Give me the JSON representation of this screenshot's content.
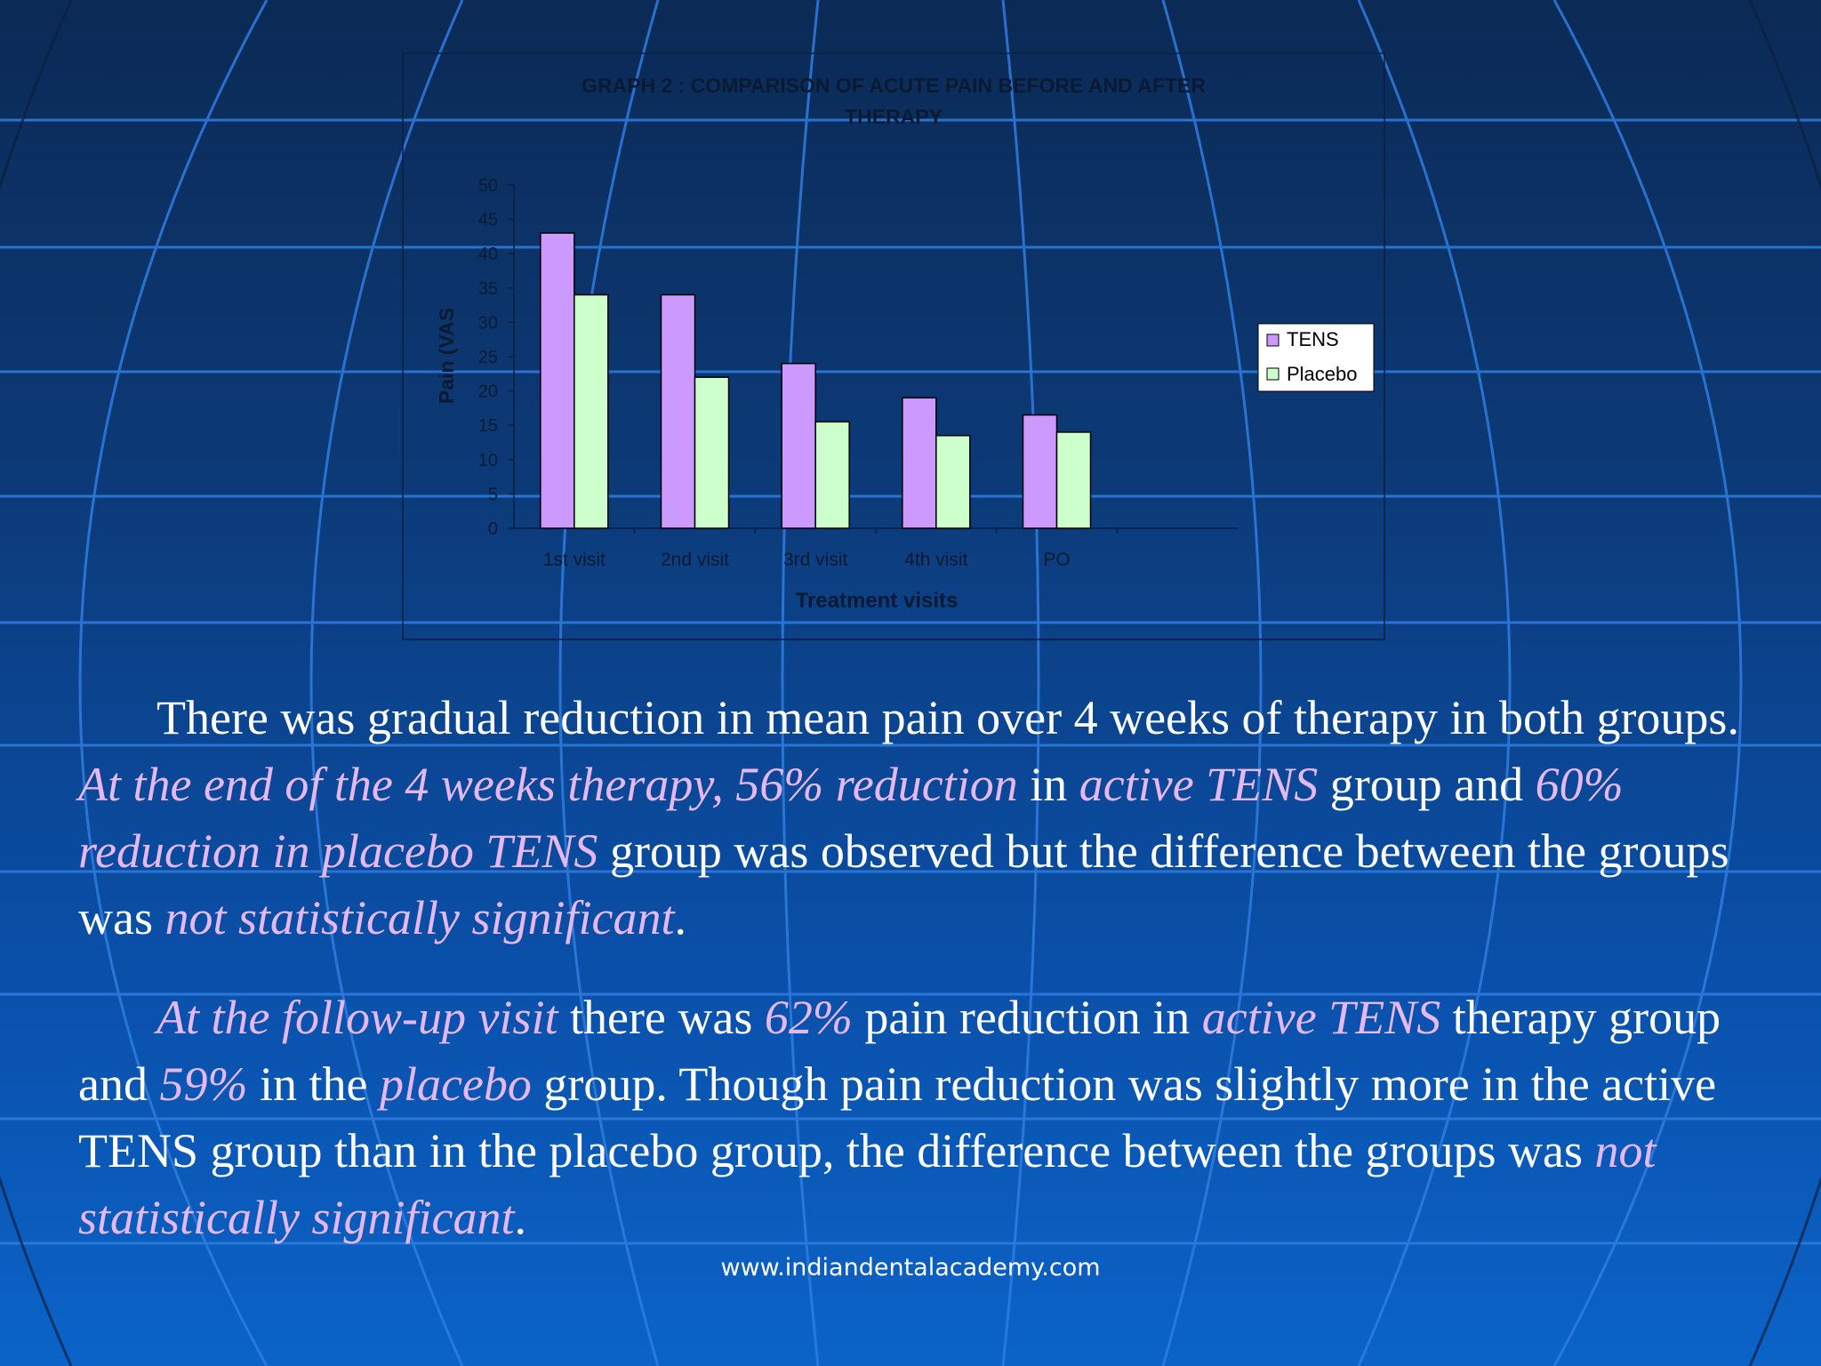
{
  "chart_data": {
    "type": "bar",
    "title_line1": "GRAPH 2 : COMPARISON OF ACUTE PAIN BEFORE AND AFTER",
    "title_line2": "THERAPY",
    "xlabel": "Treatment visits",
    "ylabel": "Pain (VAS",
    "ylim": [
      0,
      50
    ],
    "yticks": [
      0,
      5,
      10,
      15,
      20,
      25,
      30,
      35,
      40,
      45,
      50
    ],
    "categories": [
      "1st visit",
      "2nd visit",
      "3rd visit",
      "4th visit",
      "PO"
    ],
    "series": [
      {
        "name": "TENS",
        "color": "#cc99ff",
        "values": [
          43,
          34,
          24,
          19,
          16.5
        ]
      },
      {
        "name": "Placebo",
        "color": "#ccffcc",
        "values": [
          34,
          22,
          15.5,
          13.5,
          14
        ]
      }
    ],
    "legend_position": "right",
    "grid": false
  },
  "paragraphs": {
    "p1": [
      {
        "text": "There was gradual reduction in mean pain over 4 weeks of therapy in both groups. ",
        "em": false
      },
      {
        "text": "At the end of the 4 weeks therapy, 56% reduction",
        "em": true
      },
      {
        "text": " in ",
        "em": false
      },
      {
        "text": "active TENS",
        "em": true
      },
      {
        "text": " group and ",
        "em": false
      },
      {
        "text": "60% reduction in placebo TENS",
        "em": true
      },
      {
        "text": " group was observed but the difference between the groups was ",
        "em": false
      },
      {
        "text": "not statistically significant",
        "em": true
      },
      {
        "text": ".",
        "em": false
      }
    ],
    "p2": [
      {
        "text": "At the follow-up visit",
        "em": true
      },
      {
        "text": " there was ",
        "em": false
      },
      {
        "text": "62%",
        "em": true
      },
      {
        "text": " pain reduction in ",
        "em": false
      },
      {
        "text": "active TENS",
        "em": true
      },
      {
        "text": " therapy group and ",
        "em": false
      },
      {
        "text": "59%",
        "em": true
      },
      {
        "text": " in the ",
        "em": false
      },
      {
        "text": "placebo",
        "em": true
      },
      {
        "text": " group. Though pain reduction was slightly more in the active TENS group than in the placebo group, the difference between the groups was ",
        "em": false
      },
      {
        "text": "not statistically significant",
        "em": true
      },
      {
        "text": ".",
        "em": false
      }
    ]
  },
  "footer": "www.indiandentalacademy.com",
  "colors": {
    "accent": "#e6b8f2",
    "gridline": "#2f7de0"
  }
}
